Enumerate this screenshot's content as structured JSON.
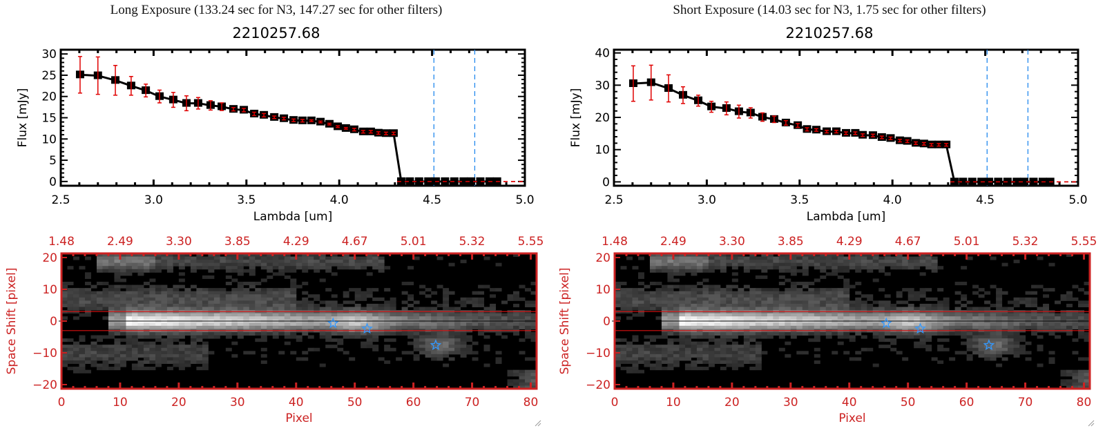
{
  "panels": [
    {
      "title": "Long Exposure (133.24 sec for N3, 147.27 sec for other filters)",
      "subtitle": "2210257.68"
    },
    {
      "title": "Short Exposure (14.03 sec for N3, 1.75 sec for other filters)",
      "subtitle": "2210257.68"
    }
  ],
  "colors": {
    "axis_black": "#000000",
    "errorbar_red": "#e00000",
    "zero_line_red": "#e00000",
    "filter_line_blue": "#2288ee",
    "image_axis_red": "#cc2222",
    "aperture_line_red": "#dd1111",
    "star_blue": "#3399ff"
  },
  "chart_data": [
    {
      "type": "line",
      "panel": "long",
      "title": "2210257.68",
      "xlabel": "Lambda [um]",
      "ylabel": "Flux [mJy]",
      "xlim": [
        2.5,
        5.0
      ],
      "ylim": [
        -1,
        31
      ],
      "xticks": [
        2.5,
        3.0,
        3.5,
        4.0,
        4.5,
        5.0
      ],
      "xtick_labels": [
        "2.5",
        "3.0",
        "3.5",
        "4.0",
        "4.5",
        "5.0"
      ],
      "yticks": [
        0,
        5,
        10,
        15,
        20,
        25,
        30
      ],
      "ytick_labels": [
        "0",
        "5",
        "10",
        "15",
        "20",
        "25",
        "30"
      ],
      "vlines": [
        4.51,
        4.73
      ],
      "hline": 0,
      "series": [
        {
          "name": "flux",
          "x": [
            2.604,
            2.7,
            2.794,
            2.879,
            2.958,
            3.032,
            3.106,
            3.177,
            3.24,
            3.307,
            3.367,
            3.43,
            3.486,
            3.542,
            3.594,
            3.65,
            3.702,
            3.754,
            3.802,
            3.85,
            3.899,
            3.947,
            3.992,
            4.036,
            4.081,
            4.129,
            4.17,
            4.211,
            4.252,
            4.293,
            4.334,
            4.38,
            4.43,
            4.48,
            4.52,
            4.57,
            4.62,
            4.67,
            4.71,
            4.76,
            4.81,
            4.85
          ],
          "y": [
            25.1,
            24.9,
            23.8,
            22.5,
            21.4,
            20.0,
            19.2,
            18.4,
            18.4,
            17.9,
            17.6,
            17.0,
            16.8,
            15.9,
            15.6,
            15.1,
            14.8,
            14.4,
            14.3,
            14.3,
            14.0,
            13.5,
            12.9,
            12.5,
            12.2,
            11.7,
            11.7,
            11.4,
            11.3,
            11.3,
            0,
            0,
            0,
            0,
            0,
            0,
            0,
            0,
            0,
            0,
            0,
            0
          ],
          "yerr": [
            4.3,
            4.4,
            3.5,
            2.2,
            1.5,
            1.5,
            1.75,
            1.75,
            1.35,
            1.1,
            0.9,
            0.4,
            0.4,
            0.4,
            0.4,
            0.3,
            0.3,
            0.3,
            0.3,
            0.2,
            0.2,
            0.2,
            0.2,
            0.2,
            0.3,
            0.3,
            0.3,
            0.3,
            0.3,
            0.3,
            0,
            0,
            0,
            0,
            0,
            0,
            0,
            0,
            0,
            0,
            0,
            0
          ]
        }
      ]
    },
    {
      "type": "line",
      "panel": "short",
      "title": "2210257.68",
      "xlabel": "Lambda [um]",
      "ylabel": "Flux [mJy]",
      "xlim": [
        2.5,
        5.0
      ],
      "ylim": [
        -1.2,
        41
      ],
      "xticks": [
        2.5,
        3.0,
        3.5,
        4.0,
        4.5,
        5.0
      ],
      "xtick_labels": [
        "2.5",
        "3.0",
        "3.5",
        "4.0",
        "4.5",
        "5.0"
      ],
      "yticks": [
        0,
        10,
        20,
        30,
        40
      ],
      "ytick_labels": [
        "0",
        "10",
        "20",
        "30",
        "40"
      ],
      "vlines": [
        4.51,
        4.73
      ],
      "hline": 0,
      "series": [
        {
          "name": "flux",
          "x": [
            2.604,
            2.7,
            2.794,
            2.872,
            2.954,
            3.025,
            3.106,
            3.173,
            3.236,
            3.3,
            3.363,
            3.426,
            3.49,
            3.54,
            3.59,
            3.646,
            3.698,
            3.75,
            3.8,
            3.84,
            3.895,
            3.943,
            3.99,
            4.04,
            4.08,
            4.126,
            4.17,
            4.21,
            4.25,
            4.29,
            4.334,
            4.38,
            4.43,
            4.48,
            4.52,
            4.57,
            4.62,
            4.67,
            4.71,
            4.76,
            4.81,
            4.85
          ],
          "y": [
            30.5,
            30.8,
            29.0,
            26.9,
            25.2,
            23.3,
            22.8,
            21.8,
            21.4,
            20.1,
            19.4,
            18.3,
            17.5,
            16.3,
            16.1,
            15.6,
            15.6,
            15.1,
            15.1,
            14.5,
            14.4,
            13.8,
            13.5,
            12.8,
            12.6,
            12.0,
            11.8,
            11.5,
            11.5,
            11.5,
            0,
            0,
            0,
            0,
            0,
            0,
            0,
            0,
            0,
            0,
            0,
            0
          ],
          "yerr": [
            5.5,
            5.4,
            4.2,
            2.6,
            1.7,
            1.7,
            2.0,
            2.0,
            1.6,
            1.3,
            1.0,
            0.7,
            0.6,
            0.5,
            0.4,
            0.4,
            0.4,
            0.4,
            0.4,
            0.4,
            0.4,
            0.4,
            0.4,
            0.4,
            0.4,
            0.4,
            0.4,
            0.4,
            0.4,
            0.4,
            0,
            0,
            0,
            0,
            0,
            0,
            0,
            0,
            0,
            0,
            0,
            0
          ]
        }
      ]
    },
    {
      "type": "heatmap",
      "panel": "long",
      "xlabel": "Pixel",
      "ylabel": "Space Shift [pixel]",
      "xlim": [
        0,
        81
      ],
      "ylim": [
        -21.3,
        21.3
      ],
      "xticks": [
        0,
        10,
        20,
        30,
        40,
        50,
        60,
        70,
        80
      ],
      "xtick_labels": [
        "0",
        "10",
        "20",
        "30",
        "40",
        "50",
        "60",
        "70",
        "80"
      ],
      "top_tick_labels": [
        "1.48",
        "2.49",
        "3.30",
        "3.85",
        "4.29",
        "4.67",
        "5.01",
        "5.32",
        "5.55"
      ],
      "yticks": [
        -20,
        -10,
        0,
        10,
        20
      ],
      "ytick_labels": [
        "-20",
        "-10",
        "0",
        "10",
        "20"
      ],
      "aperture_lines": [
        3,
        -3
      ],
      "center_line": 0,
      "stars": [
        {
          "x": 46.3,
          "y": -0.7
        },
        {
          "x": 52.1,
          "y": -2.4
        },
        {
          "x": 63.8,
          "y": -7.6
        }
      ]
    },
    {
      "type": "heatmap",
      "panel": "short",
      "xlabel": "Pixel",
      "ylabel": "Space Shift [pixel]",
      "xlim": [
        0,
        81
      ],
      "ylim": [
        -21.3,
        21.3
      ],
      "xticks": [
        0,
        10,
        20,
        30,
        40,
        50,
        60,
        70,
        80
      ],
      "xtick_labels": [
        "0",
        "10",
        "20",
        "30",
        "40",
        "50",
        "60",
        "70",
        "80"
      ],
      "top_tick_labels": [
        "1.48",
        "2.49",
        "3.30",
        "3.85",
        "4.29",
        "4.67",
        "5.01",
        "5.32",
        "5.55"
      ],
      "yticks": [
        -20,
        -10,
        0,
        10,
        20
      ],
      "ytick_labels": [
        "-20",
        "-10",
        "0",
        "10",
        "20"
      ],
      "aperture_lines": [
        3,
        -3
      ],
      "center_line": 0,
      "stars": [
        {
          "x": 46.3,
          "y": -0.7
        },
        {
          "x": 52.1,
          "y": -2.4
        },
        {
          "x": 63.8,
          "y": -7.6
        }
      ]
    }
  ]
}
